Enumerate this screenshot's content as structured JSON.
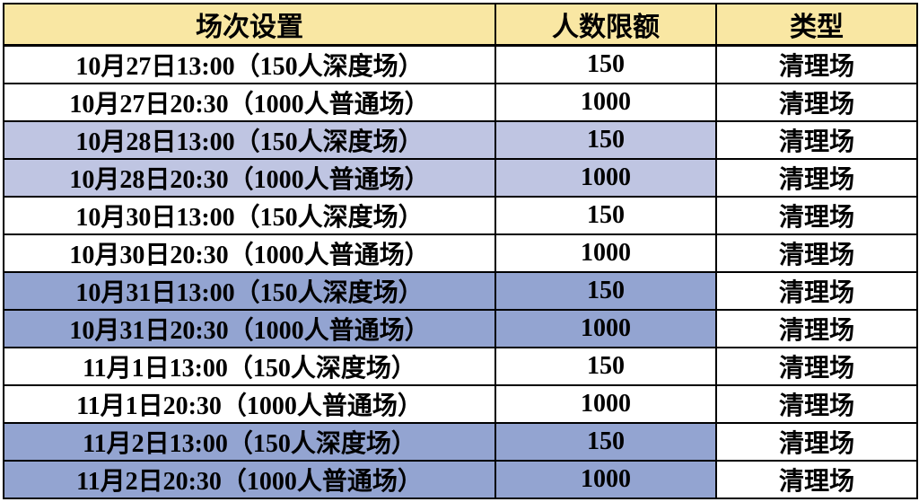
{
  "table": {
    "columns": [
      {
        "key": "session",
        "label": "场次设置"
      },
      {
        "key": "limit",
        "label": "人数限额"
      },
      {
        "key": "type",
        "label": "类型"
      }
    ],
    "rows": [
      {
        "session": "10月27日13:00（150人深度场）",
        "limit": "150",
        "type": "清理场",
        "highlight": "none"
      },
      {
        "session": "10月27日20:30（1000人普通场）",
        "limit": "1000",
        "type": "清理场",
        "highlight": "none"
      },
      {
        "session": "10月28日13:00（150人深度场）",
        "limit": "150",
        "type": "清理场",
        "highlight": "light"
      },
      {
        "session": "10月28日20:30（1000人普通场）",
        "limit": "1000",
        "type": "清理场",
        "highlight": "light"
      },
      {
        "session": "10月30日13:00（150人深度场）",
        "limit": "150",
        "type": "清理场",
        "highlight": "none"
      },
      {
        "session": "10月30日20:30（1000人普通场）",
        "limit": "1000",
        "type": "清理场",
        "highlight": "none"
      },
      {
        "session": "10月31日13:00（150人深度场）",
        "limit": "150",
        "type": "清理场",
        "highlight": "medium"
      },
      {
        "session": "10月31日20:30（1000人普通场）",
        "limit": "1000",
        "type": "清理场",
        "highlight": "medium"
      },
      {
        "session": "11月1日13:00（150人深度场）",
        "limit": "150",
        "type": "清理场",
        "highlight": "none"
      },
      {
        "session": "11月1日20:30（1000人普通场）",
        "limit": "1000",
        "type": "清理场",
        "highlight": "none"
      },
      {
        "session": "11月2日13:00（150人深度场）",
        "limit": "150",
        "type": "清理场",
        "highlight": "medium"
      },
      {
        "session": "11月2日20:30（1000人普通场）",
        "limit": "1000",
        "type": "清理场",
        "highlight": "medium"
      }
    ]
  },
  "colors": {
    "header_bg": "#f9e7a3",
    "row_light_blue": "#bfc5e2",
    "row_medium_blue": "#93a4d1",
    "row_white": "#ffffff",
    "border": "#000000",
    "text": "#000000"
  }
}
